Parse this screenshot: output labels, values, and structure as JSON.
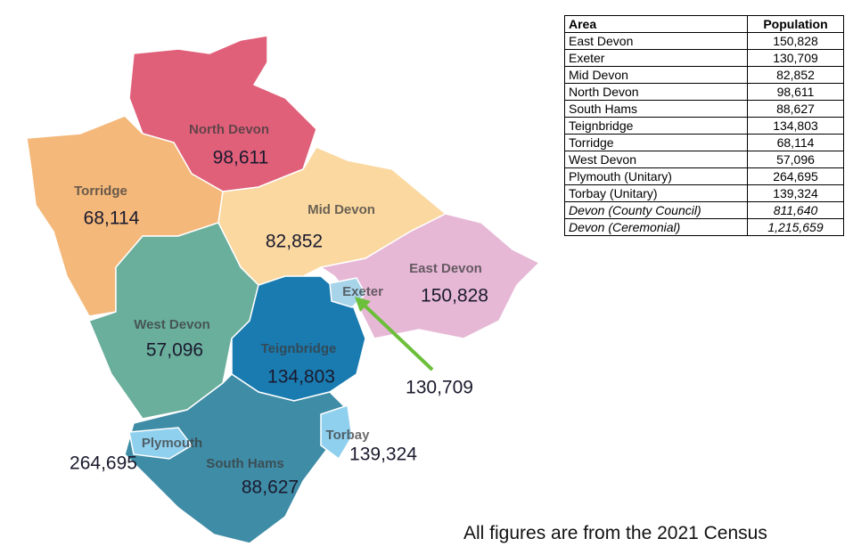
{
  "map": {
    "regions": [
      {
        "name": "North Devon",
        "population": "98,611"
      },
      {
        "name": "Torridge",
        "population": "68,114"
      },
      {
        "name": "Mid Devon",
        "population": "82,852"
      },
      {
        "name": "East Devon",
        "population": "150,828"
      },
      {
        "name": "Exeter",
        "population": "130,709"
      },
      {
        "name": "West Devon",
        "population": "57,096"
      },
      {
        "name": "Teignbridge",
        "population": "134,803"
      },
      {
        "name": "Plymouth",
        "population": "264,695"
      },
      {
        "name": "Torbay",
        "population": "139,324"
      },
      {
        "name": "South Hams",
        "population": "88,627"
      }
    ]
  },
  "table": {
    "header": [
      "Area",
      "Population"
    ],
    "rows": [
      [
        "East Devon",
        "150,828"
      ],
      [
        "Exeter",
        "130,709"
      ],
      [
        "Mid Devon",
        "82,852"
      ],
      [
        "North Devon",
        "98,611"
      ],
      [
        "South Hams",
        "88,627"
      ],
      [
        "Teignbridge",
        "134,803"
      ],
      [
        "Torridge",
        "68,114"
      ],
      [
        "West Devon",
        "57,096"
      ],
      [
        "Plymouth (Unitary)",
        "264,695"
      ],
      [
        "Torbay (Unitary)",
        "139,324"
      ],
      [
        "Devon (County Council)",
        "811,640"
      ],
      [
        "Devon (Ceremonial)",
        "1,215,659"
      ]
    ]
  },
  "footnote": "All figures are from the 2021 Census"
}
